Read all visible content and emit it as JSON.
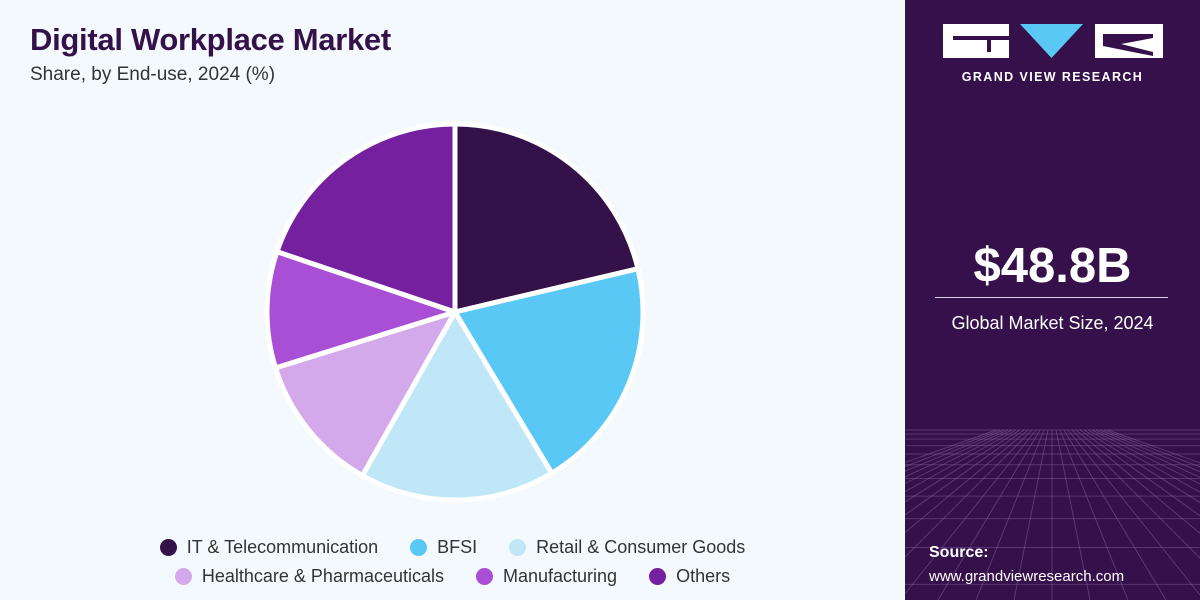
{
  "header": {
    "title": "Digital Workplace Market",
    "subtitle": "Share, by End-use, 2024 (%)"
  },
  "chart_data": {
    "type": "pie",
    "categories": [
      "IT & Telecommunication",
      "BFSI",
      "Retail & Consumer Goods",
      "Healthcare & Pharmaceuticals",
      "Manufacturing",
      "Others"
    ],
    "values": [
      21.3,
      20.1,
      16.8,
      12.0,
      10.0,
      19.8
    ],
    "colors": [
      "#35114a",
      "#5ac8f5",
      "#bfe7f8",
      "#d4a9eb",
      "#a84fd6",
      "#74209f"
    ],
    "start": "12 o'clock",
    "direction": "clockwise",
    "legend": "bottom",
    "title": "Digital Workplace Market",
    "subtitle": "Share, by End-use, 2024 (%)"
  },
  "sidebar": {
    "brand": "GRAND VIEW RESEARCH",
    "logo_icon": "gvr-logo-icon",
    "market_size": "$48.8B",
    "market_size_label": "Global Market Size, 2024",
    "source_label": "Source:",
    "source_url": "www.grandviewresearch.com",
    "accent_color": "#36104a"
  }
}
